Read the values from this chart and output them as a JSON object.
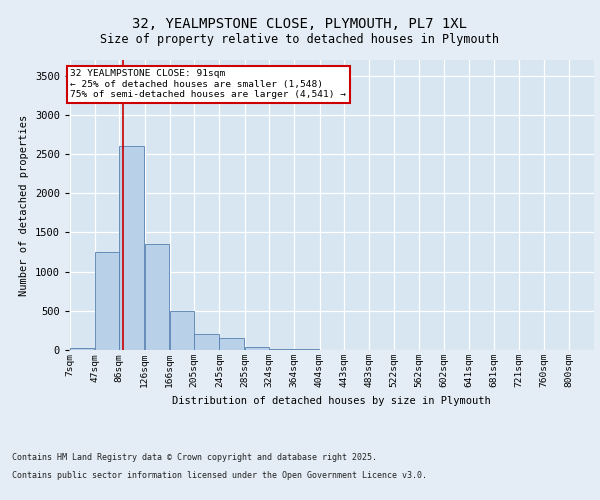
{
  "title_line1": "32, YEALMPSTONE CLOSE, PLYMOUTH, PL7 1XL",
  "title_line2": "Size of property relative to detached houses in Plymouth",
  "xlabel": "Distribution of detached houses by size in Plymouth",
  "ylabel": "Number of detached properties",
  "bin_labels": [
    "7sqm",
    "47sqm",
    "86sqm",
    "126sqm",
    "166sqm",
    "205sqm",
    "245sqm",
    "285sqm",
    "324sqm",
    "364sqm",
    "404sqm",
    "443sqm",
    "483sqm",
    "522sqm",
    "562sqm",
    "602sqm",
    "641sqm",
    "681sqm",
    "721sqm",
    "760sqm",
    "800sqm"
  ],
  "bin_edges": [
    7,
    47,
    86,
    126,
    166,
    205,
    245,
    285,
    324,
    364,
    404,
    443,
    483,
    522,
    562,
    602,
    641,
    681,
    721,
    760,
    800
  ],
  "bar_heights": [
    30,
    1250,
    2600,
    1350,
    500,
    200,
    150,
    40,
    10,
    10,
    5,
    0,
    0,
    0,
    0,
    0,
    0,
    0,
    0,
    0
  ],
  "bar_color": "#b8d0e8",
  "bar_edgecolor": "#5580b0",
  "vline_x": 91,
  "vline_color": "#cc0000",
  "annotation_line1": "32 YEALMPSTONE CLOSE: 91sqm",
  "annotation_line2": "← 25% of detached houses are smaller (1,548)",
  "annotation_line3": "75% of semi-detached houses are larger (4,541) →",
  "annotation_box_edgecolor": "#cc0000",
  "ylim": [
    0,
    3700
  ],
  "yticks": [
    0,
    500,
    1000,
    1500,
    2000,
    2500,
    3000,
    3500
  ],
  "bg_color": "#e4edf5",
  "plot_bg_color": "#d8e6f2",
  "grid_color": "#ffffff",
  "footer_line1": "Contains HM Land Registry data © Crown copyright and database right 2025.",
  "footer_line2": "Contains public sector information licensed under the Open Government Licence v3.0."
}
